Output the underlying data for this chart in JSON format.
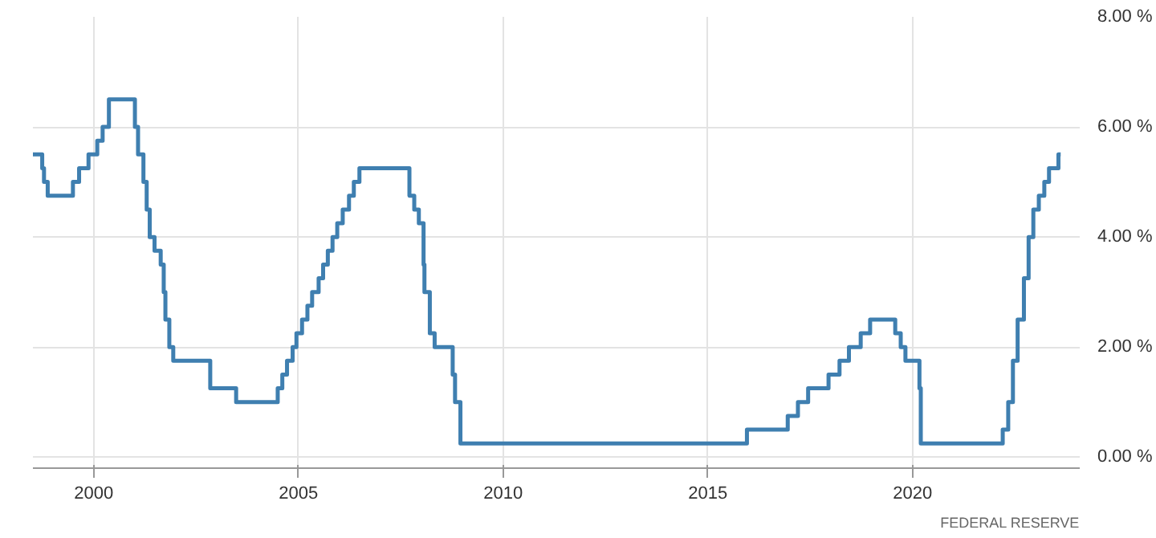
{
  "chart_data": {
    "type": "step",
    "line_style": "solid",
    "marker": "none",
    "grid": true,
    "xlim": [
      "1998-07-08",
      "2024-02-01"
    ],
    "ylim": [
      -0.2,
      8.0
    ],
    "xticks": [
      "2000",
      "2005",
      "2010",
      "2015",
      "2020"
    ],
    "yticks": [
      {
        "value": 0,
        "label": "0.00 %"
      },
      {
        "value": 2,
        "label": "2.00 %"
      },
      {
        "value": 4,
        "label": "4.00 %"
      },
      {
        "value": 6,
        "label": "6.00 %"
      },
      {
        "value": 8,
        "label": "8.00 %"
      }
    ],
    "annotations": [
      "FEDERAL RESERVE"
    ],
    "series": [
      {
        "color": "#3f7fb0",
        "x": [
          "1998-07-08",
          "1998-09-29",
          "1998-10-15",
          "1998-11-17",
          "1999-06-30",
          "1999-08-24",
          "1999-11-16",
          "2000-02-02",
          "2000-03-21",
          "2000-05-16",
          "2001-01-03",
          "2001-01-31",
          "2001-03-20",
          "2001-04-18",
          "2001-05-15",
          "2001-06-27",
          "2001-08-21",
          "2001-09-17",
          "2001-10-02",
          "2001-11-06",
          "2001-12-11",
          "2002-11-06",
          "2003-06-25",
          "2004-06-30",
          "2004-08-10",
          "2004-09-21",
          "2004-11-10",
          "2004-12-14",
          "2005-02-02",
          "2005-03-22",
          "2005-05-03",
          "2005-06-30",
          "2005-08-09",
          "2005-09-20",
          "2005-11-01",
          "2005-12-13",
          "2006-01-31",
          "2006-03-28",
          "2006-05-10",
          "2006-06-29",
          "2007-09-18",
          "2007-10-31",
          "2007-12-11",
          "2008-01-22",
          "2008-01-30",
          "2008-03-18",
          "2008-04-30",
          "2008-10-08",
          "2008-10-29",
          "2008-12-16",
          "2015-12-16",
          "2016-12-14",
          "2017-03-15",
          "2017-06-14",
          "2017-12-13",
          "2018-03-21",
          "2018-06-13",
          "2018-09-26",
          "2018-12-19",
          "2019-07-31",
          "2019-09-18",
          "2019-10-30",
          "2020-03-03",
          "2020-03-15",
          "2022-03-16",
          "2022-05-04",
          "2022-06-15",
          "2022-07-27",
          "2022-09-21",
          "2022-11-02",
          "2022-12-14",
          "2023-02-01",
          "2023-03-22",
          "2023-05-03",
          "2023-07-26",
          "2023-08-15"
        ],
        "values": [
          5.5,
          5.25,
          5.0,
          4.75,
          5.0,
          5.25,
          5.5,
          5.75,
          6.0,
          6.5,
          6.0,
          5.5,
          5.0,
          4.5,
          4.0,
          3.75,
          3.5,
          3.0,
          2.5,
          2.0,
          1.75,
          1.25,
          1.0,
          1.25,
          1.5,
          1.75,
          2.0,
          2.25,
          2.5,
          2.75,
          3.0,
          3.25,
          3.5,
          3.75,
          4.0,
          4.25,
          4.5,
          4.75,
          5.0,
          5.25,
          4.75,
          4.5,
          4.25,
          3.5,
          3.0,
          2.25,
          2.0,
          1.5,
          1.0,
          0.25,
          0.5,
          0.75,
          1.0,
          1.25,
          1.5,
          1.75,
          2.0,
          2.25,
          2.5,
          2.25,
          2.0,
          1.75,
          1.25,
          0.25,
          0.5,
          1.0,
          1.75,
          2.5,
          3.25,
          4.0,
          4.5,
          4.75,
          5.0,
          5.25,
          5.5,
          5.5
        ]
      }
    ]
  }
}
